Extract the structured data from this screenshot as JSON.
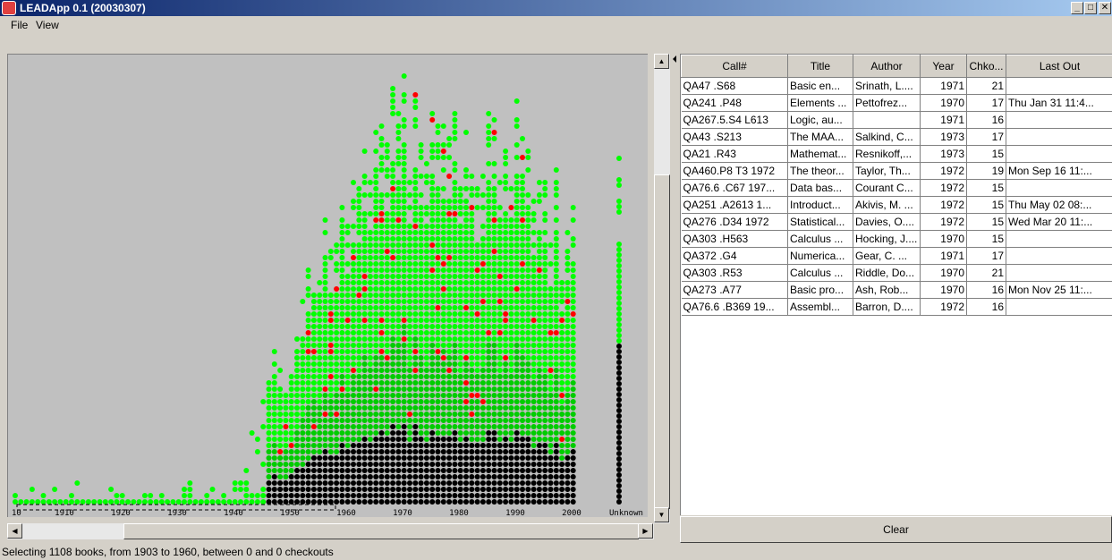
{
  "window": {
    "title": "LEADApp 0.1 (20030307)",
    "minimize_glyph": "_",
    "maximize_glyph": "□",
    "close_glyph": "✕"
  },
  "menu": {
    "file": "File",
    "view": "View"
  },
  "scrollbars": {
    "up": "▲",
    "down": "▼",
    "left": "◀",
    "right": "▶"
  },
  "plot": {
    "x_ticks": [
      "10",
      "1910",
      "1920",
      "1930",
      "1940",
      "1950",
      "1960",
      "1970",
      "1980",
      "1990",
      "2000"
    ],
    "unknown_label": "Unknown",
    "colors": {
      "background": "#c0c0c0",
      "low": "#000000",
      "mid": "#00cc00",
      "high": "#00ff00",
      "highlight": "#ff0000"
    }
  },
  "table": {
    "columns": [
      "Call#",
      "Title",
      "Author",
      "Year",
      "Chko...",
      "Last Out"
    ],
    "rows": [
      {
        "call": "QA47 .S68",
        "title": "Basic en...",
        "author": "Srinath, L....",
        "year": "1971",
        "chko": "21",
        "last": ""
      },
      {
        "call": "QA241 .P48",
        "title": "Elements ...",
        "author": "Pettofrez...",
        "year": "1970",
        "chko": "17",
        "last": "Thu Jan 31 11:4..."
      },
      {
        "call": "QA267.5.S4 L613",
        "title": "Logic, au...",
        "author": "",
        "year": "1971",
        "chko": "16",
        "last": ""
      },
      {
        "call": "QA43 .S213",
        "title": "The MAA...",
        "author": "Salkind, C...",
        "year": "1973",
        "chko": "17",
        "last": ""
      },
      {
        "call": "QA21 .R43",
        "title": "Mathemat...",
        "author": "Resnikoff,...",
        "year": "1973",
        "chko": "15",
        "last": ""
      },
      {
        "call": "QA460.P8 T3 1972",
        "title": "The theor...",
        "author": "Taylor, Th...",
        "year": "1972",
        "chko": "19",
        "last": "Mon Sep 16 11:..."
      },
      {
        "call": "QA76.6 .C67 197...",
        "title": "Data bas...",
        "author": "Courant C...",
        "year": "1972",
        "chko": "15",
        "last": ""
      },
      {
        "call": "QA251 .A2613 1...",
        "title": "Introduct...",
        "author": "Akivis, M. ...",
        "year": "1972",
        "chko": "15",
        "last": "Thu May 02 08:..."
      },
      {
        "call": "QA276 .D34 1972",
        "title": "Statistical...",
        "author": "Davies, O....",
        "year": "1972",
        "chko": "15",
        "last": "Wed Mar 20 11:..."
      },
      {
        "call": "QA303 .H563",
        "title": "Calculus ...",
        "author": "Hocking, J....",
        "year": "1970",
        "chko": "15",
        "last": ""
      },
      {
        "call": "QA372 .G4",
        "title": "Numerica...",
        "author": "Gear, C. ...",
        "year": "1971",
        "chko": "17",
        "last": ""
      },
      {
        "call": "QA303 .R53",
        "title": "Calculus ...",
        "author": "Riddle, Do...",
        "year": "1970",
        "chko": "21",
        "last": ""
      },
      {
        "call": "QA273 .A77",
        "title": "Basic pro...",
        "author": "Ash, Rob...",
        "year": "1970",
        "chko": "16",
        "last": "Mon Nov 25 11:..."
      },
      {
        "call": "QA76.6 .B369 19...",
        "title": "Assembl...",
        "author": "Barron, D....",
        "year": "1972",
        "chko": "16",
        "last": ""
      }
    ]
  },
  "clear_button": "Clear",
  "status": "Selecting 1108 books, from 1903 to 1960, between 0 and 0 checkouts"
}
